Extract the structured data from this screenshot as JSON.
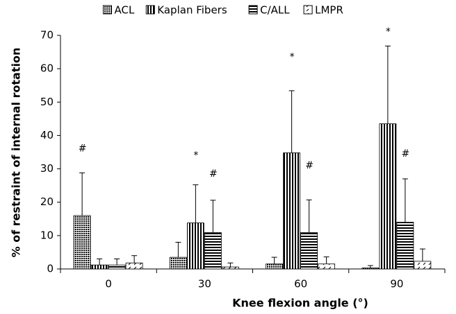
{
  "chart_data": {
    "type": "bar",
    "x_label": "Knee flexion angle (°)",
    "y_label": "% of restraint of internal rotation",
    "categories": [
      "0",
      "30",
      "60",
      "90"
    ],
    "ylim": [
      0,
      70
    ],
    "yticks": [
      0,
      10,
      20,
      30,
      40,
      50,
      60,
      70
    ],
    "series": [
      {
        "name": "ACL",
        "color": "#000000",
        "pattern": "dots",
        "values": [
          16,
          3.5,
          1.5,
          0.3
        ],
        "errors": [
          12.8,
          4.5,
          2,
          0.7
        ]
      },
      {
        "name": "Kaplan Fibers",
        "color": "#000000",
        "pattern": "vertical",
        "values": [
          1.2,
          13.8,
          34.8,
          43.5
        ],
        "errors": [
          1.8,
          11.4,
          18.6,
          23.3
        ]
      },
      {
        "name": "C/ALL",
        "color": "#000000",
        "pattern": "horizontal",
        "values": [
          1.2,
          10.9,
          10.9,
          14
        ],
        "errors": [
          1.8,
          9.7,
          9.8,
          13
        ]
      },
      {
        "name": "LMPR",
        "color": "#000000",
        "pattern": "dashes",
        "values": [
          1.8,
          0.6,
          1.5,
          2.3
        ],
        "errors": [
          2.2,
          1.2,
          2.1,
          3.7
        ]
      }
    ],
    "annotations": [
      {
        "text": "#",
        "category": 0,
        "series": 0,
        "y": 36
      },
      {
        "text": "*",
        "category": 1,
        "series": 1,
        "y": 34
      },
      {
        "text": "#",
        "category": 1,
        "series": 2,
        "y": 28.5
      },
      {
        "text": "*",
        "category": 2,
        "series": 1,
        "y": 63.5
      },
      {
        "text": "#",
        "category": 2,
        "series": 2,
        "y": 31
      },
      {
        "text": "*",
        "category": 3,
        "series": 1,
        "y": 71
      },
      {
        "text": "#",
        "category": 3,
        "series": 2,
        "y": 34.5
      }
    ],
    "legend": "top"
  }
}
